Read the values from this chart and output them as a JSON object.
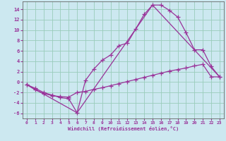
{
  "xlabel": "Windchill (Refroidissement éolien,°C)",
  "bg_color": "#cce8f0",
  "grid_color": "#99ccbb",
  "line_color": "#993399",
  "spine_color": "#666666",
  "xlim": [
    -0.5,
    23.5
  ],
  "ylim": [
    -7,
    15.5
  ],
  "xticks": [
    0,
    1,
    2,
    3,
    4,
    5,
    6,
    7,
    8,
    9,
    10,
    11,
    12,
    13,
    14,
    15,
    16,
    17,
    18,
    19,
    20,
    21,
    22,
    23
  ],
  "yticks": [
    -6,
    -4,
    -2,
    0,
    2,
    4,
    6,
    8,
    10,
    12,
    14
  ],
  "curve1_x": [
    0,
    1,
    2,
    3,
    4,
    5,
    6,
    7,
    8,
    9,
    10,
    11,
    12,
    13,
    14,
    15,
    16,
    17,
    18,
    19,
    20,
    21,
    22,
    23
  ],
  "curve1_y": [
    -0.5,
    -1.2,
    -2.0,
    -2.5,
    -3.0,
    -3.2,
    -5.9,
    0.3,
    2.5,
    4.2,
    5.2,
    7.0,
    7.5,
    10.2,
    13.0,
    14.8,
    14.8,
    13.8,
    12.5,
    9.5,
    6.2,
    6.2,
    3.0,
    1.0
  ],
  "curve2_x": [
    0,
    1,
    2,
    3,
    4,
    5,
    6,
    7,
    8,
    9,
    10,
    11,
    12,
    13,
    14,
    15,
    16,
    17,
    18,
    19,
    20,
    21,
    22,
    23
  ],
  "curve2_y": [
    -0.5,
    -1.5,
    -2.2,
    -2.6,
    -2.8,
    -2.9,
    -2.0,
    -1.8,
    -1.4,
    -1.1,
    -0.7,
    -0.3,
    0.1,
    0.5,
    0.9,
    1.3,
    1.7,
    2.1,
    2.4,
    2.7,
    3.1,
    3.4,
    1.0,
    1.0
  ],
  "curve3_x": [
    0,
    6,
    15,
    23
  ],
  "curve3_y": [
    -0.5,
    -5.9,
    14.8,
    1.0
  ]
}
